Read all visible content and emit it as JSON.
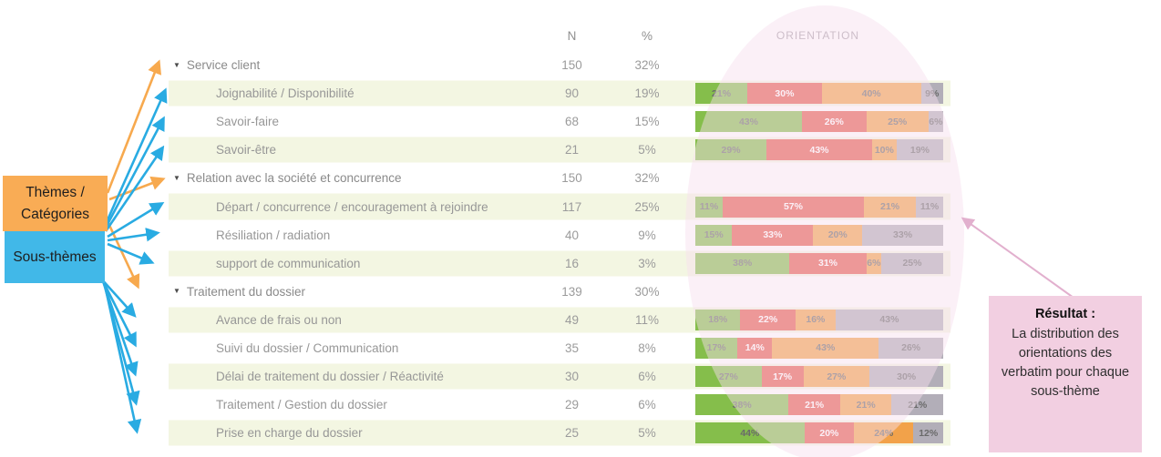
{
  "columns": {
    "n": "N",
    "pct": "%",
    "orientation": "ORIENTATION"
  },
  "callouts": {
    "themes_label": "Thèmes / Catégories",
    "subthemes_label": "Sous-thèmes"
  },
  "annotation": {
    "title": "Résultat :",
    "body": "La distribution des orientations des verbatim pour chaque sous-thème"
  },
  "palette": {
    "green": "#85BE4B",
    "red": "#E4594C",
    "orange": "#F2A24A",
    "gray": "#B2AEB8",
    "arrow_orange": "#F7A94E",
    "arrow_blue": "#29ABE2",
    "arrow_pink": "#E2B0CE",
    "band_green": "#F3F6E2",
    "ellipse_pink": "#F6DFED",
    "result_box_pink": "#F2CFE1",
    "theme_box_orange": "#F9AC55",
    "subtheme_box_blue": "#41B8E8"
  },
  "rows": [
    {
      "level": "theme",
      "label": "Service client",
      "n": "150",
      "pct": "32%"
    },
    {
      "level": "sub",
      "label": "Joignabilité / Disponibilité",
      "n": "90",
      "pct": "19%",
      "segments": [
        {
          "color": "green",
          "value": 21
        },
        {
          "color": "red",
          "value": 30
        },
        {
          "color": "orange",
          "value": 40
        },
        {
          "color": "gray",
          "value": 9
        }
      ]
    },
    {
      "level": "sub",
      "label": "Savoir-faire",
      "n": "68",
      "pct": "15%",
      "segments": [
        {
          "color": "green",
          "value": 43
        },
        {
          "color": "red",
          "value": 26
        },
        {
          "color": "orange",
          "value": 25
        },
        {
          "color": "gray",
          "value": 6
        }
      ]
    },
    {
      "level": "sub",
      "label": "Savoir-être",
      "n": "21",
      "pct": "5%",
      "segments": [
        {
          "color": "green",
          "value": 29
        },
        {
          "color": "red",
          "value": 43
        },
        {
          "color": "orange",
          "value": 10
        },
        {
          "color": "gray",
          "value": 19
        }
      ]
    },
    {
      "level": "theme",
      "label": "Relation avec la société et concurrence",
      "n": "150",
      "pct": "32%"
    },
    {
      "level": "sub",
      "label": "Départ / concurrence / encouragement à rejoindre",
      "n": "117",
      "pct": "25%",
      "segments": [
        {
          "color": "green",
          "value": 11
        },
        {
          "color": "red",
          "value": 57
        },
        {
          "color": "orange",
          "value": 21
        },
        {
          "color": "gray",
          "value": 11
        }
      ]
    },
    {
      "level": "sub",
      "label": "Résiliation / radiation",
      "n": "40",
      "pct": "9%",
      "segments": [
        {
          "color": "green",
          "value": 15
        },
        {
          "color": "red",
          "value": 33
        },
        {
          "color": "orange",
          "value": 20
        },
        {
          "color": "gray",
          "value": 33
        }
      ]
    },
    {
      "level": "sub",
      "label": "support de communication",
      "n": "16",
      "pct": "3%",
      "segments": [
        {
          "color": "green",
          "value": 38
        },
        {
          "color": "red",
          "value": 31
        },
        {
          "color": "orange",
          "value": 6
        },
        {
          "color": "gray",
          "value": 25
        }
      ]
    },
    {
      "level": "theme",
      "label": "Traitement du dossier",
      "n": "139",
      "pct": "30%"
    },
    {
      "level": "sub",
      "label": "Avance de frais ou non",
      "n": "49",
      "pct": "11%",
      "segments": [
        {
          "color": "green",
          "value": 18
        },
        {
          "color": "red",
          "value": 22
        },
        {
          "color": "orange",
          "value": 16
        },
        {
          "color": "gray",
          "value": 43
        }
      ]
    },
    {
      "level": "sub",
      "label": "Suivi du dossier / Communication",
      "n": "35",
      "pct": "8%",
      "segments": [
        {
          "color": "green",
          "value": 17
        },
        {
          "color": "red",
          "value": 14
        },
        {
          "color": "orange",
          "value": 43
        },
        {
          "color": "gray",
          "value": 26
        }
      ]
    },
    {
      "level": "sub",
      "label": "Délai de traitement du dossier / Réactivité",
      "n": "30",
      "pct": "6%",
      "segments": [
        {
          "color": "green",
          "value": 27
        },
        {
          "color": "red",
          "value": 17
        },
        {
          "color": "orange",
          "value": 27
        },
        {
          "color": "gray",
          "value": 30
        }
      ]
    },
    {
      "level": "sub",
      "label": "Traitement / Gestion du dossier",
      "n": "29",
      "pct": "6%",
      "segments": [
        {
          "color": "green",
          "value": 38
        },
        {
          "color": "red",
          "value": 21
        },
        {
          "color": "orange",
          "value": 21
        },
        {
          "color": "gray",
          "value": 21
        }
      ]
    },
    {
      "level": "sub",
      "label": "Prise en charge du dossier",
      "n": "25",
      "pct": "5%",
      "segments": [
        {
          "color": "green",
          "value": 44
        },
        {
          "color": "red",
          "value": 20
        },
        {
          "color": "orange",
          "value": 24
        },
        {
          "color": "gray",
          "value": 12
        }
      ]
    }
  ],
  "chart_data": {
    "type": "bar",
    "stacked": true,
    "orientation": "horizontal",
    "units": "%",
    "title": "ORIENTATION",
    "categories": [
      "Joignabilité / Disponibilité",
      "Savoir-faire",
      "Savoir-être",
      "Départ / concurrence / encouragement à rejoindre",
      "Résiliation / radiation",
      "support de communication",
      "Avance de frais ou non",
      "Suivi du dossier / Communication",
      "Délai de traitement du dossier / Réactivité",
      "Traitement / Gestion du dossier",
      "Prise en charge du dossier"
    ],
    "series": [
      {
        "name": "green",
        "color": "#85BE4B",
        "values": [
          21,
          43,
          29,
          11,
          15,
          38,
          18,
          17,
          27,
          38,
          44
        ]
      },
      {
        "name": "red",
        "color": "#E4594C",
        "values": [
          30,
          26,
          43,
          57,
          33,
          31,
          22,
          14,
          17,
          21,
          20
        ]
      },
      {
        "name": "orange",
        "color": "#F2A24A",
        "values": [
          40,
          25,
          10,
          21,
          20,
          6,
          16,
          43,
          27,
          21,
          24
        ]
      },
      {
        "name": "gray",
        "color": "#B2AEB8",
        "values": [
          9,
          6,
          19,
          11,
          33,
          25,
          43,
          26,
          30,
          21,
          12
        ]
      }
    ],
    "theme_totals": [
      {
        "label": "Service client",
        "n": 150,
        "pct": "32%"
      },
      {
        "label": "Relation avec la société et concurrence",
        "n": 150,
        "pct": "32%"
      },
      {
        "label": "Traitement du dossier",
        "n": 139,
        "pct": "30%"
      }
    ],
    "xlim": [
      0,
      100
    ],
    "legend": "none"
  }
}
